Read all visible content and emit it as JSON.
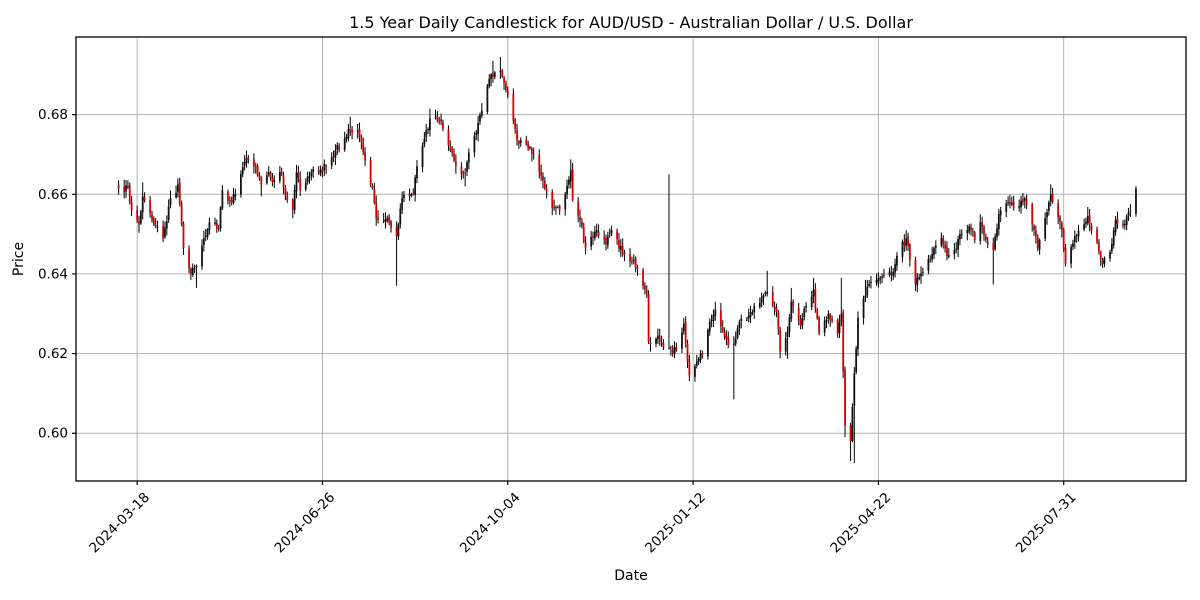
{
  "figure": {
    "title": "1.5 Year Daily Candlestick for AUD/USD - Australian Dollar / U.S. Dollar",
    "background": "#ffffff"
  },
  "chart_data": {
    "type": "candlestick",
    "frequency": "daily",
    "instrument": "AUD/USD",
    "title": "1.5 Year Daily Candlestick for AUD/USD - Australian Dollar / U.S. Dollar",
    "xlabel": "Date",
    "ylabel": "Price",
    "grid": true,
    "legend": "none",
    "ylim": [
      0.588,
      0.6995
    ],
    "xlim": [
      "2024-02-14",
      "2025-10-05"
    ],
    "ytick_values": [
      0.6,
      0.62,
      0.64,
      0.66,
      0.68
    ],
    "ytick_labels": [
      "0.60",
      "0.62",
      "0.64",
      "0.66",
      "0.68"
    ],
    "xtick_dates": [
      "2024-03-18",
      "2024-06-26",
      "2024-10-04",
      "2025-01-12",
      "2025-04-22",
      "2025-07-31"
    ],
    "xtick_rotation_deg": 45,
    "colors": {
      "up_body": "#111111",
      "down_body": "#d40000",
      "wick": "#000000",
      "grid": "#b3b3b3",
      "spine": "#000000",
      "text": "#000000",
      "background": "#ffffff"
    },
    "series_start": "2024-03-08",
    "series_end": "2025-09-08",
    "ohlc_anchors": [
      [
        "2024-03-08",
        0.6615,
        0.6635,
        null
      ],
      [
        "2024-03-11",
        0.6605,
        null,
        null
      ],
      [
        "2024-03-13",
        0.662,
        0.6635,
        null
      ],
      [
        "2024-03-15",
        0.656,
        null,
        null
      ],
      [
        "2024-03-19",
        0.6525,
        null,
        0.6503
      ],
      [
        "2024-03-21",
        0.6595,
        0.663,
        null
      ],
      [
        "2024-03-26",
        0.6535,
        null,
        null
      ],
      [
        "2024-04-01",
        0.649,
        null,
        0.648
      ],
      [
        "2024-04-04",
        0.657,
        null,
        null
      ],
      [
        "2024-04-09",
        0.6625,
        0.664,
        null
      ],
      [
        "2024-04-12",
        0.6465,
        null,
        null
      ],
      [
        "2024-04-16",
        0.64,
        null,
        null
      ],
      [
        "2024-04-19",
        0.642,
        null,
        0.6365
      ],
      [
        "2024-04-23",
        0.649,
        null,
        null
      ],
      [
        "2024-04-26",
        0.653,
        null,
        null
      ],
      [
        "2024-05-01",
        0.6515,
        null,
        null
      ],
      [
        "2024-05-03",
        0.661,
        null,
        null
      ],
      [
        "2024-05-08",
        0.658,
        null,
        null
      ],
      [
        "2024-05-10",
        0.66,
        null,
        null
      ],
      [
        "2024-05-16",
        0.669,
        0.671,
        null
      ],
      [
        "2024-05-21",
        0.667,
        null,
        null
      ],
      [
        "2024-05-24",
        0.6625,
        null,
        0.6595
      ],
      [
        "2024-05-28",
        0.6655,
        null,
        null
      ],
      [
        "2024-05-30",
        0.663,
        null,
        null
      ],
      [
        "2024-06-04",
        0.665,
        null,
        null
      ],
      [
        "2024-06-07",
        0.6585,
        null,
        null
      ],
      [
        "2024-06-10",
        0.656,
        null,
        0.654
      ],
      [
        "2024-06-12",
        0.6655,
        null,
        null
      ],
      [
        "2024-06-14",
        0.661,
        null,
        null
      ],
      [
        "2024-06-20",
        0.6655,
        null,
        null
      ],
      [
        "2024-06-24",
        0.6655,
        null,
        null
      ],
      [
        "2024-06-28",
        0.667,
        null,
        null
      ],
      [
        "2024-07-03",
        0.671,
        null,
        null
      ],
      [
        "2024-07-08",
        0.674,
        null,
        null
      ],
      [
        "2024-07-11",
        0.676,
        0.6795,
        null
      ],
      [
        "2024-07-15",
        0.676,
        null,
        null
      ],
      [
        "2024-07-19",
        0.6685,
        null,
        null
      ],
      [
        "2024-07-23",
        0.6615,
        null,
        null
      ],
      [
        "2024-07-25",
        0.654,
        null,
        null
      ],
      [
        "2024-07-31",
        0.654,
        null,
        null
      ],
      [
        "2024-08-02",
        0.6515,
        null,
        null
      ],
      [
        "2024-08-05",
        0.6495,
        null,
        0.637
      ],
      [
        "2024-08-08",
        0.659,
        null,
        null
      ],
      [
        "2024-08-12",
        0.6595,
        null,
        null
      ],
      [
        "2024-08-14",
        0.66,
        null,
        null
      ],
      [
        "2024-08-16",
        0.667,
        null,
        null
      ],
      [
        "2024-08-20",
        0.674,
        null,
        null
      ],
      [
        "2024-08-23",
        0.679,
        0.6815,
        null
      ],
      [
        "2024-08-28",
        0.6785,
        null,
        null
      ],
      [
        "2024-08-30",
        0.6765,
        null,
        null
      ],
      [
        "2024-09-03",
        0.671,
        null,
        null
      ],
      [
        "2024-09-06",
        0.667,
        null,
        null
      ],
      [
        "2024-09-11",
        0.6655,
        null,
        0.662
      ],
      [
        "2024-09-13",
        0.6705,
        null,
        null
      ],
      [
        "2024-09-17",
        0.6755,
        null,
        null
      ],
      [
        "2024-09-20",
        0.681,
        null,
        null
      ],
      [
        "2024-09-24",
        0.689,
        null,
        null
      ],
      [
        "2024-09-26",
        0.6895,
        0.6935,
        null
      ],
      [
        "2024-09-30",
        0.691,
        0.6945,
        null
      ],
      [
        "2024-10-02",
        0.688,
        null,
        null
      ],
      [
        "2024-10-04",
        0.685,
        null,
        null
      ],
      [
        "2024-10-09",
        0.6735,
        null,
        null
      ],
      [
        "2024-10-14",
        0.6725,
        null,
        null
      ],
      [
        "2024-10-18",
        0.67,
        null,
        null
      ],
      [
        "2024-10-23",
        0.6635,
        null,
        0.6615
      ],
      [
        "2024-10-29",
        0.6565,
        null,
        null
      ],
      [
        "2024-11-01",
        0.656,
        null,
        null
      ],
      [
        "2024-11-07",
        0.666,
        0.6688,
        null
      ],
      [
        "2024-11-08",
        0.6585,
        null,
        null
      ],
      [
        "2024-11-12",
        0.6535,
        null,
        null
      ],
      [
        "2024-11-15",
        0.6465,
        null,
        null
      ],
      [
        "2024-11-21",
        0.651,
        null,
        null
      ],
      [
        "2024-11-26",
        0.6475,
        null,
        null
      ],
      [
        "2024-11-29",
        0.651,
        null,
        null
      ],
      [
        "2024-12-05",
        0.645,
        null,
        null
      ],
      [
        "2024-12-11",
        0.6435,
        null,
        null
      ],
      [
        "2024-12-16",
        0.637,
        null,
        null
      ],
      [
        "2024-12-18",
        0.635,
        null,
        null
      ],
      [
        "2024-12-19",
        0.623,
        null,
        null
      ],
      [
        "2024-12-24",
        0.6245,
        null,
        null
      ],
      [
        "2024-12-27",
        0.6215,
        null,
        null
      ],
      [
        "2024-12-30",
        0.6215,
        0.665,
        0.621
      ],
      [
        "2025-01-03",
        0.621,
        null,
        null
      ],
      [
        "2025-01-07",
        0.6275,
        null,
        null
      ],
      [
        "2025-01-10",
        0.6145,
        null,
        0.6131
      ],
      [
        "2025-01-14",
        0.618,
        null,
        null
      ],
      [
        "2025-01-17",
        0.6195,
        null,
        null
      ],
      [
        "2025-01-21",
        0.628,
        null,
        null
      ],
      [
        "2025-01-24",
        0.631,
        0.633,
        null
      ],
      [
        "2025-01-28",
        0.6255,
        null,
        null
      ],
      [
        "2025-01-31",
        0.622,
        null,
        null
      ],
      [
        "2025-02-03",
        0.6225,
        null,
        0.6085
      ],
      [
        "2025-02-06",
        0.628,
        null,
        null
      ],
      [
        "2025-02-11",
        0.6295,
        null,
        null
      ],
      [
        "2025-02-14",
        0.632,
        null,
        null
      ],
      [
        "2025-02-21",
        0.6355,
        0.6408,
        null
      ],
      [
        "2025-02-26",
        0.6305,
        null,
        null
      ],
      [
        "2025-02-28",
        0.6205,
        null,
        null
      ],
      [
        "2025-03-04",
        0.6255,
        null,
        0.6187
      ],
      [
        "2025-03-06",
        0.633,
        0.6365,
        null
      ],
      [
        "2025-03-11",
        0.627,
        null,
        null
      ],
      [
        "2025-03-14",
        0.632,
        null,
        null
      ],
      [
        "2025-03-18",
        0.636,
        0.639,
        null
      ],
      [
        "2025-03-21",
        0.625,
        null,
        null
      ],
      [
        "2025-03-26",
        0.63,
        null,
        null
      ],
      [
        "2025-03-31",
        0.625,
        null,
        null
      ],
      [
        "2025-04-02",
        0.63,
        0.639,
        null
      ],
      [
        "2025-04-04",
        0.602,
        null,
        0.599
      ],
      [
        "2025-04-07",
        0.598,
        null,
        0.593
      ],
      [
        "2025-04-09",
        0.615,
        null,
        0.5925
      ],
      [
        "2025-04-11",
        0.629,
        null,
        null
      ],
      [
        "2025-04-15",
        0.6345,
        0.6385,
        null
      ],
      [
        "2025-04-17",
        0.6375,
        null,
        null
      ],
      [
        "2025-04-22",
        0.639,
        null,
        null
      ],
      [
        "2025-04-25",
        0.6395,
        null,
        null
      ],
      [
        "2025-04-30",
        0.6405,
        null,
        null
      ],
      [
        "2025-05-02",
        0.6445,
        null,
        null
      ],
      [
        "2025-05-07",
        0.649,
        0.651,
        null
      ],
      [
        "2025-05-12",
        0.6375,
        null,
        0.6357
      ],
      [
        "2025-05-16",
        0.6405,
        null,
        null
      ],
      [
        "2025-05-21",
        0.645,
        null,
        null
      ],
      [
        "2025-05-26",
        0.649,
        null,
        null
      ],
      [
        "2025-05-29",
        0.6445,
        null,
        null
      ],
      [
        "2025-06-02",
        0.646,
        null,
        null
      ],
      [
        "2025-06-05",
        0.65,
        null,
        null
      ],
      [
        "2025-06-10",
        0.652,
        null,
        null
      ],
      [
        "2025-06-13",
        0.6485,
        null,
        null
      ],
      [
        "2025-06-16",
        0.653,
        0.655,
        null
      ],
      [
        "2025-06-19",
        0.6485,
        null,
        null
      ],
      [
        "2025-06-23",
        0.646,
        null,
        0.6373
      ],
      [
        "2025-06-26",
        0.655,
        null,
        null
      ],
      [
        "2025-07-01",
        0.658,
        0.6595,
        null
      ],
      [
        "2025-07-04",
        0.6565,
        null,
        null
      ],
      [
        "2025-07-10",
        0.659,
        null,
        null
      ],
      [
        "2025-07-15",
        0.651,
        null,
        null
      ],
      [
        "2025-07-17",
        0.6465,
        null,
        null
      ],
      [
        "2025-07-22",
        0.6555,
        null,
        null
      ],
      [
        "2025-07-24",
        0.66,
        0.6625,
        null
      ],
      [
        "2025-07-30",
        0.651,
        null,
        null
      ],
      [
        "2025-08-01",
        0.6425,
        null,
        0.6419
      ],
      [
        "2025-08-06",
        0.6495,
        null,
        null
      ],
      [
        "2025-08-13",
        0.6545,
        0.6568,
        null
      ],
      [
        "2025-08-18",
        0.648,
        null,
        null
      ],
      [
        "2025-08-21",
        0.6425,
        null,
        0.6415
      ],
      [
        "2025-08-26",
        0.6475,
        null,
        null
      ],
      [
        "2025-08-28",
        0.6535,
        null,
        null
      ],
      [
        "2025-09-01",
        0.652,
        null,
        null
      ],
      [
        "2025-09-03",
        0.6545,
        null,
        null
      ],
      [
        "2025-09-05",
        0.6555,
        null,
        null
      ],
      [
        "2025-09-08",
        0.6615,
        0.662,
        null
      ]
    ]
  }
}
